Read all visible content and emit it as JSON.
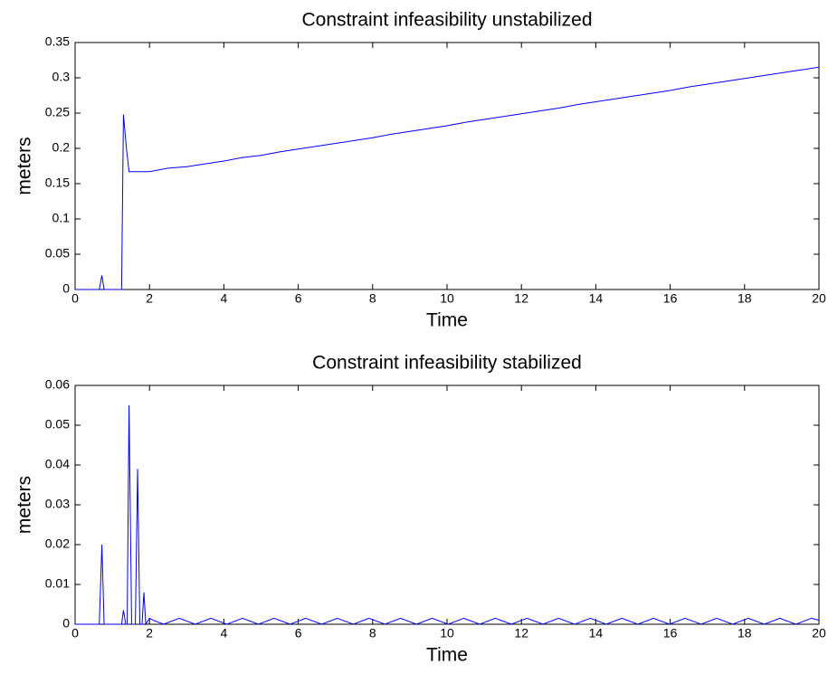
{
  "chart_data": [
    {
      "type": "line",
      "title": "Constraint infeasibility unstabilized",
      "xlabel": "Time",
      "ylabel": "meters",
      "xlim": [
        0,
        20
      ],
      "ylim": [
        0,
        0.35
      ],
      "xticks": [
        0,
        2,
        4,
        6,
        8,
        10,
        12,
        14,
        16,
        18,
        20
      ],
      "yticks": [
        0,
        0.05,
        0.1,
        0.15,
        0.2,
        0.25,
        0.3,
        0.35
      ],
      "series": [
        {
          "color": "#0000ff",
          "x": [
            0,
            0.65,
            0.72,
            0.78,
            1.25,
            1.3,
            1.38,
            1.45,
            1.6,
            2,
            2.5,
            3,
            3.5,
            4,
            4.5,
            5,
            5.5,
            6,
            6.5,
            7,
            7.5,
            8,
            8.5,
            9,
            9.5,
            10,
            10.5,
            11,
            11.5,
            12,
            12.5,
            13,
            13.5,
            14,
            14.5,
            15,
            15.5,
            16,
            16.5,
            17,
            17.5,
            18,
            18.5,
            19,
            19.5,
            20
          ],
          "values": [
            0,
            0,
            0.02,
            0,
            0,
            0.248,
            0.2,
            0.167,
            0.167,
            0.167,
            0.172,
            0.174,
            0.178,
            0.182,
            0.187,
            0.19,
            0.195,
            0.199,
            0.203,
            0.207,
            0.211,
            0.215,
            0.22,
            0.224,
            0.228,
            0.232,
            0.237,
            0.241,
            0.245,
            0.249,
            0.253,
            0.257,
            0.262,
            0.266,
            0.27,
            0.274,
            0.278,
            0.282,
            0.287,
            0.291,
            0.295,
            0.299,
            0.303,
            0.307,
            0.311,
            0.315
          ]
        }
      ]
    },
    {
      "type": "line",
      "title": "Constraint infeasibility stabilized",
      "xlabel": "Time",
      "ylabel": "meters",
      "xlim": [
        0,
        20
      ],
      "ylim": [
        0,
        0.06
      ],
      "xticks": [
        0,
        2,
        4,
        6,
        8,
        10,
        12,
        14,
        16,
        18,
        20
      ],
      "yticks": [
        0,
        0.01,
        0.02,
        0.03,
        0.04,
        0.05,
        0.06
      ],
      "series": [
        {
          "color": "#0000ff",
          "x": [
            0,
            0.65,
            0.72,
            0.78,
            1.25,
            1.3,
            1.36,
            1.4,
            1.45,
            1.52,
            1.62,
            1.68,
            1.74,
            1.8,
            1.85,
            1.9,
            2.0,
            2.1,
            2.38,
            2.8,
            3.23,
            3.65,
            4.08,
            4.5,
            4.93,
            5.35,
            5.78,
            6.2,
            6.63,
            7.05,
            7.48,
            7.9,
            8.33,
            8.75,
            9.18,
            9.6,
            10.03,
            10.45,
            10.88,
            11.3,
            11.73,
            12.15,
            12.58,
            13,
            13.43,
            13.85,
            14.28,
            14.7,
            15.13,
            15.55,
            15.98,
            16.4,
            16.83,
            17.25,
            17.68,
            18.1,
            18.53,
            18.95,
            19.38,
            19.8,
            20
          ],
          "values": [
            0,
            0,
            0.02,
            0,
            0,
            0.0035,
            0,
            0,
            0.055,
            0,
            0,
            0.039,
            0,
            0,
            0.008,
            0,
            0.0015,
            0.001,
            0,
            0.0015,
            0,
            0.0015,
            0,
            0.0015,
            0,
            0.0015,
            0,
            0.0015,
            0,
            0.0015,
            0,
            0.0015,
            0,
            0.0015,
            0,
            0.0015,
            0,
            0.0015,
            0,
            0.0015,
            0,
            0.0015,
            0,
            0.0015,
            0,
            0.0015,
            0,
            0.0015,
            0,
            0.0015,
            0,
            0.0015,
            0,
            0.0015,
            0,
            0.0015,
            0,
            0.0015,
            0,
            0.0015,
            0.001
          ]
        }
      ]
    }
  ]
}
